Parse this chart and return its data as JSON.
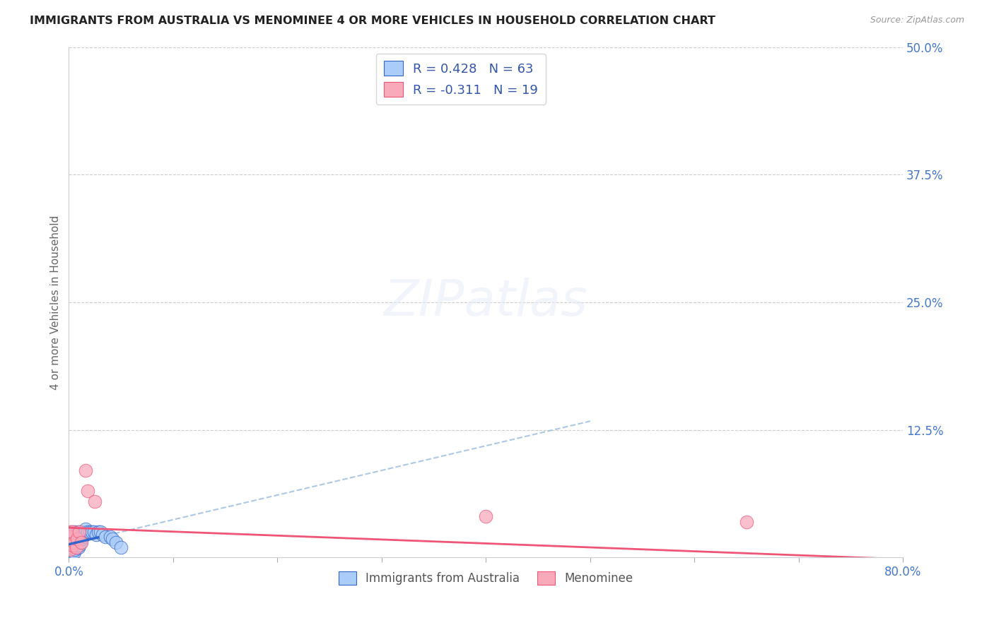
{
  "title": "IMMIGRANTS FROM AUSTRALIA VS MENOMINEE 4 OR MORE VEHICLES IN HOUSEHOLD CORRELATION CHART",
  "source": "Source: ZipAtlas.com",
  "ylabel": "4 or more Vehicles in Household",
  "legend_label_1": "Immigrants from Australia",
  "legend_label_2": "Menominee",
  "R1": 0.428,
  "N1": 63,
  "R2": -0.311,
  "N2": 19,
  "color_blue": "#aaccf8",
  "color_pink": "#f8aabb",
  "trend_color_blue": "#3366cc",
  "trend_color_pink": "#ee5577",
  "trend_color_dashed": "#99bbdd",
  "background_color": "#ffffff",
  "xlim": [
    0.0,
    0.8
  ],
  "ylim": [
    0.0,
    0.5
  ],
  "blue_scatter_x": [
    0.0005,
    0.0005,
    0.0007,
    0.0008,
    0.001,
    0.001,
    0.001,
    0.001,
    0.0012,
    0.0012,
    0.0015,
    0.0015,
    0.0015,
    0.002,
    0.002,
    0.002,
    0.002,
    0.0025,
    0.0025,
    0.0025,
    0.003,
    0.003,
    0.003,
    0.003,
    0.0035,
    0.0035,
    0.004,
    0.004,
    0.004,
    0.0045,
    0.005,
    0.005,
    0.005,
    0.006,
    0.006,
    0.006,
    0.007,
    0.007,
    0.008,
    0.008,
    0.009,
    0.009,
    0.01,
    0.01,
    0.011,
    0.012,
    0.013,
    0.014,
    0.015,
    0.016,
    0.018,
    0.02,
    0.022,
    0.024,
    0.026,
    0.028,
    0.03,
    0.032,
    0.035,
    0.04,
    0.042,
    0.045,
    0.05
  ],
  "blue_scatter_y": [
    0.005,
    0.008,
    0.006,
    0.01,
    0.005,
    0.01,
    0.015,
    0.02,
    0.008,
    0.012,
    0.006,
    0.01,
    0.015,
    0.005,
    0.008,
    0.012,
    0.018,
    0.006,
    0.01,
    0.02,
    0.005,
    0.01,
    0.015,
    0.025,
    0.008,
    0.018,
    0.005,
    0.012,
    0.022,
    0.015,
    0.005,
    0.012,
    0.02,
    0.008,
    0.015,
    0.025,
    0.01,
    0.02,
    0.012,
    0.022,
    0.01,
    0.025,
    0.012,
    0.022,
    0.015,
    0.018,
    0.02,
    0.022,
    0.025,
    0.028,
    0.025,
    0.025,
    0.025,
    0.025,
    0.022,
    0.025,
    0.025,
    0.022,
    0.02,
    0.02,
    0.018,
    0.015,
    0.01
  ],
  "pink_scatter_x": [
    0.0005,
    0.0008,
    0.001,
    0.0012,
    0.0015,
    0.002,
    0.0025,
    0.003,
    0.004,
    0.005,
    0.007,
    0.008,
    0.01,
    0.012,
    0.016,
    0.018,
    0.025,
    0.4,
    0.65
  ],
  "pink_scatter_y": [
    0.01,
    0.012,
    0.025,
    0.008,
    0.015,
    0.018,
    0.02,
    0.025,
    0.012,
    0.015,
    0.01,
    0.018,
    0.025,
    0.015,
    0.085,
    0.065,
    0.055,
    0.04,
    0.035
  ]
}
